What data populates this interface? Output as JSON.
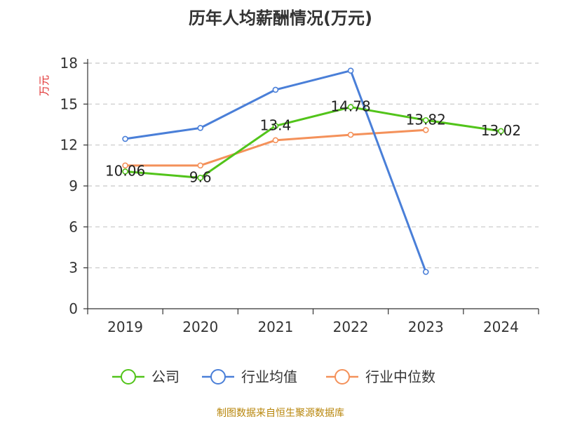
{
  "title": "历年人均薪酬情况(万元)",
  "source": "制图数据来自恒生聚源数据库",
  "chart_data": {
    "type": "line",
    "categories": [
      "2019",
      "2020",
      "2021",
      "2022",
      "2023",
      "2024"
    ],
    "ylabel": "万元",
    "ylim": [
      0,
      18
    ],
    "yticks": [
      0,
      3,
      6,
      9,
      12,
      15,
      18
    ],
    "grid": true,
    "legend_position": "bottom",
    "series": [
      {
        "name": "公司",
        "color": "#52c41a",
        "values": [
          10.06,
          9.6,
          13.4,
          14.78,
          13.82,
          13.02
        ],
        "labels": [
          "10.06",
          "9.6",
          "13.4",
          "14.78",
          "13.82",
          "13.02"
        ]
      },
      {
        "name": "行业均值",
        "color": "#4a7fd8",
        "values": [
          12.45,
          13.25,
          16.05,
          17.45,
          2.7,
          null
        ],
        "labels": []
      },
      {
        "name": "行业中位数",
        "color": "#f4915a",
        "values": [
          10.5,
          10.5,
          12.35,
          12.75,
          13.1,
          null
        ],
        "labels": []
      }
    ]
  }
}
